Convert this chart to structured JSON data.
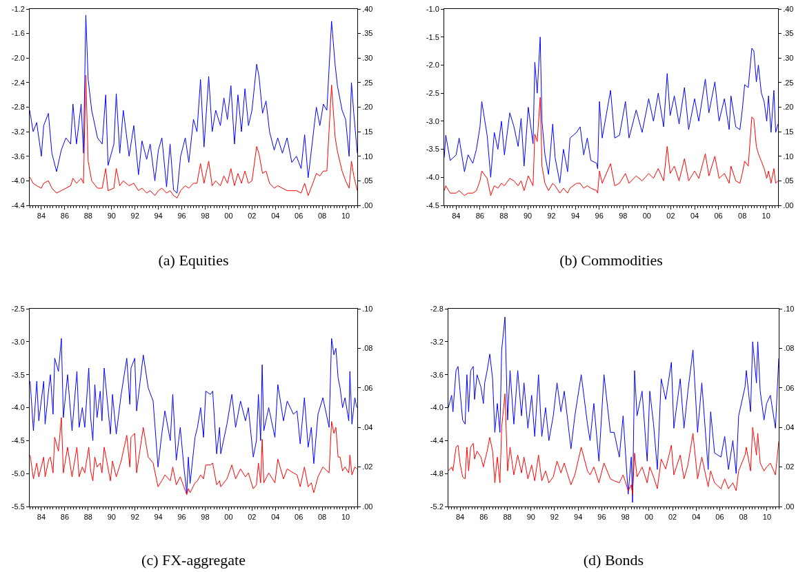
{
  "chart_data": [
    {
      "type": "line",
      "title": "(a) Equities",
      "xlim": [
        1983,
        2011
      ],
      "xticks": [
        {
          "value": 1984,
          "label": "84"
        },
        {
          "value": 1986,
          "label": "86"
        },
        {
          "value": 1988,
          "label": "88"
        },
        {
          "value": 1990,
          "label": "90"
        },
        {
          "value": 1992,
          "label": "92"
        },
        {
          "value": 1994,
          "label": "94"
        },
        {
          "value": 1996,
          "label": "96"
        },
        {
          "value": 1998,
          "label": "98"
        },
        {
          "value": 2000,
          "label": "00"
        },
        {
          "value": 2002,
          "label": "02"
        },
        {
          "value": 2004,
          "label": "04"
        },
        {
          "value": 2006,
          "label": "06"
        },
        {
          "value": 2008,
          "label": "08"
        },
        {
          "value": 2010,
          "label": "10"
        }
      ],
      "ylim": [
        -4.4,
        -1.2
      ],
      "yticks": [
        {
          "value": -4.4,
          "label": "-4.4"
        },
        {
          "value": -4.0,
          "label": "-4.0"
        },
        -3.6,
        -3.2,
        -2.8,
        -2.4,
        {
          "value": -2.0,
          "label": "-2.0"
        },
        -1.6,
        -1.2
      ],
      "y2lim": [
        0,
        0.4
      ],
      "y2ticks": [
        {
          "value": 0,
          "label": ".00"
        },
        {
          "value": 0.05,
          "label": ".05"
        },
        {
          "value": 0.1,
          "label": ".10"
        },
        {
          "value": 0.15,
          "label": ".15"
        },
        {
          "value": 0.2,
          "label": ".20"
        },
        {
          "value": 0.25,
          "label": ".25"
        },
        {
          "value": 0.3,
          "label": ".30"
        },
        {
          "value": 0.35,
          "label": ".35"
        },
        {
          "value": 0.4,
          "label": ".40"
        }
      ],
      "x": [
        1983.0,
        1983.3,
        1983.6,
        1984.0,
        1984.2,
        1984.6,
        1984.9,
        1985.3,
        1985.7,
        1986.1,
        1986.5,
        1986.7,
        1987.0,
        1987.4,
        1987.6,
        1987.8,
        1988.0,
        1988.3,
        1988.8,
        1989.2,
        1989.5,
        1989.7,
        1990.2,
        1990.4,
        1990.7,
        1991.0,
        1991.5,
        1991.9,
        1992.3,
        1992.6,
        1993.0,
        1993.3,
        1993.7,
        1994.0,
        1994.3,
        1994.7,
        1995.0,
        1995.3,
        1995.6,
        1995.9,
        1996.3,
        1996.6,
        1997.0,
        1997.3,
        1997.6,
        1997.9,
        1998.3,
        1998.6,
        1998.9,
        1999.3,
        1999.6,
        1999.9,
        2000.2,
        2000.5,
        2000.8,
        2001.1,
        2001.4,
        2001.7,
        2002.0,
        2002.4,
        2002.6,
        2002.9,
        2003.2,
        2003.5,
        2003.9,
        2004.2,
        2004.6,
        2005.0,
        2005.4,
        2005.8,
        2006.2,
        2006.5,
        2006.8,
        2007.2,
        2007.5,
        2007.8,
        2008.1,
        2008.4,
        2008.8,
        2009.1,
        2009.3,
        2009.7,
        2010.0,
        2010.3,
        2010.5,
        2010.7,
        2011.0
      ],
      "series": [
        {
          "color": "#0000ff",
          "values": [
            -2.85,
            -3.2,
            -3.05,
            -3.6,
            -3.1,
            -2.9,
            -3.55,
            -3.85,
            -3.5,
            -3.3,
            -3.4,
            -2.75,
            -3.4,
            -2.75,
            -3.55,
            -1.3,
            -2.35,
            -2.85,
            -3.3,
            -3.4,
            -2.6,
            -3.75,
            -3.4,
            -2.58,
            -3.55,
            -2.85,
            -3.6,
            -3.1,
            -3.9,
            -3.35,
            -3.65,
            -3.4,
            -4.0,
            -3.5,
            -3.3,
            -4.1,
            -3.4,
            -4.15,
            -4.2,
            -3.6,
            -3.3,
            -3.7,
            -3.0,
            -3.2,
            -2.35,
            -3.45,
            -2.3,
            -3.2,
            -2.85,
            -3.1,
            -2.65,
            -3.0,
            -2.45,
            -3.4,
            -2.6,
            -3.2,
            -2.5,
            -3.1,
            -2.85,
            -2.1,
            -2.3,
            -2.9,
            -2.7,
            -3.2,
            -3.5,
            -3.3,
            -3.55,
            -3.3,
            -3.7,
            -3.6,
            -3.8,
            -3.25,
            -3.95,
            -3.3,
            -2.8,
            -3.1,
            -2.75,
            -2.85,
            -1.4,
            -2.1,
            -2.45,
            -2.85,
            -3.0,
            -3.6,
            -2.4,
            -2.9,
            -3.55
          ]
        },
        {
          "color": "#ff0000",
          "axis": "y2",
          "values": [
            0.058,
            0.045,
            0.04,
            0.035,
            0.045,
            0.05,
            0.035,
            0.025,
            0.03,
            0.035,
            0.04,
            0.055,
            0.045,
            0.055,
            0.045,
            0.265,
            0.09,
            0.05,
            0.035,
            0.035,
            0.075,
            0.03,
            0.035,
            0.075,
            0.04,
            0.05,
            0.04,
            0.045,
            0.03,
            0.035,
            0.025,
            0.03,
            0.02,
            0.03,
            0.035,
            0.025,
            0.03,
            0.02,
            0.015,
            0.03,
            0.04,
            0.035,
            0.045,
            0.045,
            0.085,
            0.045,
            0.09,
            0.04,
            0.05,
            0.04,
            0.06,
            0.045,
            0.075,
            0.04,
            0.065,
            0.045,
            0.07,
            0.045,
            0.05,
            0.12,
            0.105,
            0.065,
            0.07,
            0.045,
            0.035,
            0.04,
            0.035,
            0.03,
            0.03,
            0.03,
            0.025,
            0.045,
            0.02,
            0.045,
            0.065,
            0.06,
            0.07,
            0.07,
            0.245,
            0.14,
            0.11,
            0.07,
            0.05,
            0.035,
            0.09,
            0.06,
            0.03
          ]
        }
      ]
    },
    {
      "type": "line",
      "title": "(b) Commodities",
      "xlim": [
        1983,
        2011
      ],
      "xticks": [
        {
          "value": 1984,
          "label": "84"
        },
        {
          "value": 1986,
          "label": "86"
        },
        {
          "value": 1988,
          "label": "88"
        },
        {
          "value": 1990,
          "label": "90"
        },
        {
          "value": 1992,
          "label": "92"
        },
        {
          "value": 1994,
          "label": "94"
        },
        {
          "value": 1996,
          "label": "96"
        },
        {
          "value": 1998,
          "label": "98"
        },
        {
          "value": 2000,
          "label": "00"
        },
        {
          "value": 2002,
          "label": "02"
        },
        {
          "value": 2004,
          "label": "04"
        },
        {
          "value": 2006,
          "label": "06"
        },
        {
          "value": 2008,
          "label": "08"
        },
        {
          "value": 2010,
          "label": "10"
        }
      ],
      "ylim": [
        -4.5,
        -1.0
      ],
      "yticks": [
        -4.5,
        {
          "value": -4.0,
          "label": "-4.0"
        },
        -3.5,
        {
          "value": -3.0,
          "label": "-3.0"
        },
        -2.5,
        {
          "value": -2.0,
          "label": "-2.0"
        },
        -1.5,
        {
          "value": -1.0,
          "label": "-1.0"
        }
      ],
      "y2lim": [
        0,
        0.4
      ],
      "y2ticks": [
        {
          "value": 0,
          "label": ".00"
        },
        {
          "value": 0.05,
          "label": ".05"
        },
        {
          "value": 0.1,
          "label": ".10"
        },
        {
          "value": 0.15,
          "label": ".15"
        },
        {
          "value": 0.2,
          "label": ".20"
        },
        {
          "value": 0.25,
          "label": ".25"
        },
        {
          "value": 0.3,
          "label": ".30"
        },
        {
          "value": 0.35,
          "label": ".35"
        },
        {
          "value": 0.4,
          "label": ".40"
        }
      ],
      "x": [
        1983.0,
        1983.13,
        1983.5,
        1984.0,
        1984.25,
        1984.7,
        1985.0,
        1985.4,
        1985.7,
        1986.0,
        1986.15,
        1986.6,
        1986.9,
        1987.2,
        1987.5,
        1987.8,
        1988.05,
        1988.5,
        1988.85,
        1989.2,
        1989.45,
        1989.7,
        1990.05,
        1990.45,
        1990.6,
        1990.8,
        1991.05,
        1991.2,
        1991.45,
        1991.75,
        1992.1,
        1992.3,
        1992.7,
        1993.0,
        1993.35,
        1993.55,
        1994.1,
        1994.4,
        1994.7,
        1995.0,
        1995.3,
        1995.78,
        1995.87,
        1996.02,
        1996.25,
        1996.95,
        1997.3,
        1997.7,
        1998.2,
        1998.5,
        1999.1,
        1999.6,
        2000.15,
        2000.55,
        2000.95,
        2001.4,
        2001.7,
        2001.95,
        2002.3,
        2002.7,
        2003.15,
        2003.5,
        2004.0,
        2004.35,
        2004.9,
        2005.2,
        2005.7,
        2006.05,
        2006.5,
        2006.9,
        2007.05,
        2007.45,
        2007.8,
        2008.0,
        2008.2,
        2008.5,
        2008.8,
        2008.97,
        2009.18,
        2009.35,
        2009.6,
        2009.83,
        2010.05,
        2010.2,
        2010.41,
        2010.65,
        2010.8,
        2011.0
      ],
      "series": [
        {
          "color": "#0000ff",
          "values": [
            -3.65,
            -3.25,
            -3.7,
            -3.6,
            -3.3,
            -3.9,
            -3.6,
            -3.75,
            -3.5,
            -3.1,
            -2.65,
            -3.25,
            -4.0,
            -3.2,
            -3.5,
            -3.0,
            -3.6,
            -2.85,
            -3.1,
            -3.45,
            -2.95,
            -3.8,
            -2.75,
            -3.4,
            -1.95,
            -2.5,
            -1.5,
            -3.0,
            -3.6,
            -3.95,
            -3.05,
            -3.65,
            -4.1,
            -3.5,
            -3.9,
            -3.3,
            -3.2,
            -3.1,
            -3.6,
            -3.3,
            -3.7,
            -3.75,
            -3.85,
            -2.65,
            -3.3,
            -2.45,
            -3.3,
            -3.25,
            -2.65,
            -3.3,
            -2.8,
            -3.2,
            -2.6,
            -3.0,
            -2.5,
            -3.1,
            -2.15,
            -2.9,
            -2.55,
            -3.05,
            -2.4,
            -3.15,
            -2.6,
            -3.0,
            -2.25,
            -2.85,
            -2.3,
            -3.0,
            -2.6,
            -3.15,
            -2.55,
            -3.1,
            -3.15,
            -2.8,
            -2.35,
            -2.4,
            -1.7,
            -1.75,
            -2.3,
            -2.0,
            -2.5,
            -2.65,
            -3.0,
            -2.55,
            -3.2,
            -2.45,
            -3.2,
            -3.05
          ]
        },
        {
          "color": "#ff0000",
          "axis": "y2",
          "values": [
            0.03,
            0.04,
            0.025,
            0.025,
            0.03,
            0.02,
            0.025,
            0.025,
            0.03,
            0.05,
            0.07,
            0.055,
            0.02,
            0.04,
            0.035,
            0.045,
            0.04,
            0.055,
            0.05,
            0.04,
            0.05,
            0.03,
            0.06,
            0.04,
            0.145,
            0.13,
            0.22,
            0.08,
            0.045,
            0.03,
            0.045,
            0.04,
            0.025,
            0.035,
            0.025,
            0.035,
            0.045,
            0.045,
            0.035,
            0.04,
            0.035,
            0.03,
            0.025,
            0.07,
            0.045,
            0.085,
            0.04,
            0.045,
            0.065,
            0.045,
            0.06,
            0.05,
            0.065,
            0.055,
            0.075,
            0.05,
            0.12,
            0.065,
            0.08,
            0.05,
            0.095,
            0.05,
            0.07,
            0.055,
            0.105,
            0.06,
            0.1,
            0.055,
            0.065,
            0.045,
            0.08,
            0.05,
            0.045,
            0.065,
            0.09,
            0.08,
            0.18,
            0.175,
            0.12,
            0.105,
            0.09,
            0.075,
            0.055,
            0.07,
            0.045,
            0.075,
            0.045,
            0.05
          ]
        }
      ]
    },
    {
      "type": "line",
      "title": "(c) FX-aggregate",
      "xlim": [
        1983,
        2011
      ],
      "xticks": [
        {
          "value": 1984,
          "label": "84"
        },
        {
          "value": 1986,
          "label": "86"
        },
        {
          "value": 1988,
          "label": "88"
        },
        {
          "value": 1990,
          "label": "90"
        },
        {
          "value": 1992,
          "label": "92"
        },
        {
          "value": 1994,
          "label": "94"
        },
        {
          "value": 1996,
          "label": "96"
        },
        {
          "value": 1998,
          "label": "98"
        },
        {
          "value": 2000,
          "label": "00"
        },
        {
          "value": 2002,
          "label": "02"
        },
        {
          "value": 2004,
          "label": "04"
        },
        {
          "value": 2006,
          "label": "06"
        },
        {
          "value": 2008,
          "label": "08"
        },
        {
          "value": 2010,
          "label": "10"
        }
      ],
      "ylim": [
        -5.5,
        -2.5
      ],
      "yticks": [
        -5.5,
        {
          "value": -5.0,
          "label": "-5.0"
        },
        -4.5,
        {
          "value": -4.0,
          "label": "-4.0"
        },
        -3.5,
        {
          "value": -3.0,
          "label": "-3.0"
        },
        -2.5
      ],
      "y2lim": [
        0,
        0.1
      ],
      "y2ticks": [
        {
          "value": 0,
          "label": ".00"
        },
        {
          "value": 0.02,
          "label": ".02"
        },
        {
          "value": 0.04,
          "label": ".04"
        },
        {
          "value": 0.06,
          "label": ".06"
        },
        {
          "value": 0.08,
          "label": ".08"
        },
        {
          "value": 0.1,
          "label": ".10"
        }
      ],
      "x": [
        1983.04,
        1983.32,
        1983.61,
        1983.78,
        1984.2,
        1984.32,
        1984.64,
        1984.77,
        1985.0,
        1985.14,
        1985.46,
        1985.71,
        1985.88,
        1986.24,
        1986.62,
        1987.04,
        1987.23,
        1987.5,
        1987.71,
        1988.05,
        1988.21,
        1988.4,
        1988.57,
        1988.76,
        1989.03,
        1989.18,
        1989.37,
        1989.9,
        1990.08,
        1990.4,
        1990.82,
        1991.3,
        1991.56,
        1991.66,
        1991.98,
        1992.14,
        1992.71,
        1993.13,
        1993.55,
        1993.97,
        1994.29,
        1994.56,
        1995.02,
        1995.23,
        1995.53,
        1995.87,
        1996.18,
        1996.43,
        1996.56,
        1996.71,
        1997.13,
        1997.34,
        1997.61,
        1997.86,
        1998.05,
        1998.45,
        1998.64,
        1998.98,
        1999.23,
        1999.33,
        1999.86,
        2000.28,
        2000.6,
        2001.02,
        2001.44,
        2001.69,
        2002.11,
        2002.38,
        2002.55,
        2002.74,
        2002.87,
        2003.01,
        2003.43,
        2003.96,
        2004.21,
        2004.69,
        2005.01,
        2005.54,
        2005.85,
        2006.12,
        2006.48,
        2006.8,
        2007.07,
        2007.28,
        2007.64,
        2008.06,
        2008.59,
        2008.8,
        2009.0,
        2009.17,
        2009.36,
        2009.53,
        2009.74,
        2009.95,
        2010.27,
        2010.37,
        2010.54,
        2010.79,
        2010.96
      ],
      "series": [
        {
          "color": "#0000ff",
          "values": [
            -3.6,
            -4.35,
            -3.6,
            -4.2,
            -3.6,
            -4.25,
            -3.7,
            -3.5,
            -4.1,
            -3.25,
            -3.45,
            -2.95,
            -4.15,
            -3.5,
            -4.35,
            -3.45,
            -4.3,
            -4.0,
            -4.3,
            -3.4,
            -4.15,
            -4.5,
            -3.65,
            -4.15,
            -3.75,
            -4.2,
            -3.4,
            -4.4,
            -3.8,
            -4.4,
            -3.8,
            -3.25,
            -3.95,
            -3.4,
            -3.25,
            -4.05,
            -3.2,
            -3.7,
            -3.9,
            -4.9,
            -4.4,
            -4.05,
            -4.5,
            -3.8,
            -4.8,
            -4.3,
            -4.9,
            -5.3,
            -4.75,
            -5.15,
            -4.45,
            -4.3,
            -4.0,
            -4.45,
            -3.75,
            -3.8,
            -3.75,
            -4.7,
            -4.3,
            -4.7,
            -4.25,
            -3.8,
            -4.3,
            -3.9,
            -4.2,
            -4.0,
            -4.75,
            -4.5,
            -3.8,
            -4.5,
            -3.35,
            -4.35,
            -4.0,
            -4.45,
            -3.65,
            -4.2,
            -3.9,
            -4.1,
            -4.05,
            -4.55,
            -3.85,
            -4.6,
            -4.3,
            -4.85,
            -4.1,
            -3.85,
            -4.3,
            -2.95,
            -3.2,
            -3.1,
            -3.55,
            -3.7,
            -4.0,
            -3.85,
            -4.2,
            -3.45,
            -4.25,
            -3.85,
            -4.0
          ]
        },
        {
          "color": "#ff0000",
          "axis": "y2",
          "values": [
            0.026,
            0.014,
            0.022,
            0.015,
            0.025,
            0.015,
            0.024,
            0.025,
            0.017,
            0.035,
            0.028,
            0.045,
            0.017,
            0.03,
            0.015,
            0.03,
            0.015,
            0.02,
            0.017,
            0.03,
            0.018,
            0.013,
            0.025,
            0.02,
            0.022,
            0.017,
            0.03,
            0.013,
            0.023,
            0.015,
            0.023,
            0.036,
            0.02,
            0.035,
            0.037,
            0.017,
            0.04,
            0.025,
            0.022,
            0.01,
            0.013,
            0.016,
            0.013,
            0.02,
            0.011,
            0.015,
            0.01,
            0.006,
            0.009,
            0.007,
            0.012,
            0.013,
            0.016,
            0.014,
            0.021,
            0.021,
            0.022,
            0.011,
            0.013,
            0.01,
            0.014,
            0.021,
            0.014,
            0.019,
            0.015,
            0.017,
            0.009,
            0.011,
            0.022,
            0.012,
            0.034,
            0.012,
            0.017,
            0.012,
            0.024,
            0.014,
            0.019,
            0.017,
            0.016,
            0.01,
            0.02,
            0.01,
            0.012,
            0.007,
            0.015,
            0.02,
            0.017,
            0.043,
            0.037,
            0.04,
            0.025,
            0.025,
            0.018,
            0.02,
            0.017,
            0.026,
            0.016,
            0.02,
            0.019
          ]
        }
      ]
    },
    {
      "type": "line",
      "title": "(d) Bonds",
      "xlim": [
        1983,
        2011
      ],
      "xticks": [
        {
          "value": 1984,
          "label": "84"
        },
        {
          "value": 1986,
          "label": "86"
        },
        {
          "value": 1988,
          "label": "88"
        },
        {
          "value": 1990,
          "label": "90"
        },
        {
          "value": 1992,
          "label": "92"
        },
        {
          "value": 1994,
          "label": "94"
        },
        {
          "value": 1996,
          "label": "96"
        },
        {
          "value": 1998,
          "label": "98"
        },
        {
          "value": 2000,
          "label": "00"
        },
        {
          "value": 2002,
          "label": "02"
        },
        {
          "value": 2004,
          "label": "04"
        },
        {
          "value": 2006,
          "label": "06"
        },
        {
          "value": 2008,
          "label": "08"
        },
        {
          "value": 2010,
          "label": "10"
        }
      ],
      "ylim": [
        -5.2,
        -2.8
      ],
      "yticks": [
        -5.2,
        -4.8,
        -4.4,
        {
          "value": -4.0,
          "label": "-4.0"
        },
        -3.6,
        -3.2,
        -2.8
      ],
      "y2lim": [
        0,
        0.1
      ],
      "y2ticks": [
        {
          "value": 0,
          "label": ".00"
        },
        {
          "value": 0.02,
          "label": ".02"
        },
        {
          "value": 0.04,
          "label": ".04"
        },
        {
          "value": 0.06,
          "label": ".06"
        },
        {
          "value": 0.08,
          "label": ".08"
        },
        {
          "value": 0.1,
          "label": ".10"
        }
      ],
      "x": [
        1983.0,
        1983.28,
        1983.39,
        1983.65,
        1983.82,
        1983.99,
        1984.21,
        1984.42,
        1984.57,
        1984.72,
        1984.89,
        1985.11,
        1985.22,
        1985.43,
        1985.76,
        1985.97,
        1986.08,
        1986.29,
        1986.51,
        1986.75,
        1986.94,
        1987.15,
        1987.37,
        1987.52,
        1987.8,
        1988.02,
        1988.23,
        1988.55,
        1988.88,
        1989.2,
        1989.41,
        1989.74,
        1990.06,
        1990.32,
        1990.64,
        1990.92,
        1991.24,
        1991.52,
        1991.89,
        1992.21,
        1992.54,
        1992.82,
        1993.07,
        1993.39,
        1993.72,
        1994.26,
        1994.79,
        1995.01,
        1995.33,
        1995.76,
        1996.19,
        1996.73,
        1997.05,
        1997.49,
        1997.81,
        1998.24,
        1998.5,
        1998.61,
        1998.78,
        1998.99,
        1999.42,
        1999.85,
        2000.07,
        2000.39,
        2000.71,
        2001.04,
        2001.42,
        2001.9,
        2002.11,
        2002.65,
        2002.97,
        2003.3,
        2003.73,
        2004.12,
        2004.48,
        2005.02,
        2005.23,
        2005.56,
        2006.1,
        2006.42,
        2006.74,
        2007.11,
        2007.39,
        2007.6,
        2008.14,
        2008.25,
        2008.61,
        2008.79,
        2009.11,
        2009.22,
        2009.43,
        2009.75,
        2009.97,
        2010.29,
        2010.72,
        2011.0
      ],
      "series": [
        {
          "color": "#0000ff",
          "values": [
            -4.0,
            -3.85,
            -4.05,
            -3.55,
            -3.5,
            -3.8,
            -4.15,
            -4.2,
            -3.6,
            -4.05,
            -3.55,
            -3.5,
            -3.9,
            -3.6,
            -3.75,
            -3.95,
            -3.7,
            -3.55,
            -3.35,
            -3.65,
            -4.3,
            -3.95,
            -4.3,
            -3.3,
            -2.9,
            -4.15,
            -3.55,
            -4.2,
            -3.55,
            -4.1,
            -3.7,
            -4.25,
            -3.85,
            -4.35,
            -3.6,
            -4.35,
            -4.0,
            -4.4,
            -4.1,
            -3.7,
            -4.05,
            -3.8,
            -4.1,
            -4.5,
            -4.1,
            -3.6,
            -4.2,
            -4.4,
            -3.95,
            -4.65,
            -3.6,
            -4.3,
            -4.3,
            -4.6,
            -4.1,
            -5.05,
            -4.6,
            -5.15,
            -3.55,
            -4.1,
            -3.8,
            -4.65,
            -3.8,
            -4.2,
            -4.75,
            -3.65,
            -3.9,
            -3.45,
            -4.25,
            -3.65,
            -4.25,
            -3.8,
            -3.3,
            -4.3,
            -3.7,
            -4.75,
            -4.05,
            -4.55,
            -4.6,
            -4.35,
            -4.75,
            -4.4,
            -4.8,
            -4.1,
            -3.75,
            -3.55,
            -4.05,
            -3.2,
            -3.7,
            -3.2,
            -3.8,
            -4.15,
            -3.95,
            -3.85,
            -4.25,
            -3.4
          ]
        },
        {
          "color": "#ff0000",
          "axis": "y2",
          "values": [
            0.018,
            0.02,
            0.018,
            0.03,
            0.031,
            0.022,
            0.015,
            0.014,
            0.03,
            0.018,
            0.03,
            0.032,
            0.024,
            0.028,
            0.025,
            0.02,
            0.023,
            0.028,
            0.035,
            0.028,
            0.012,
            0.025,
            0.012,
            0.04,
            0.057,
            0.018,
            0.03,
            0.016,
            0.026,
            0.017,
            0.025,
            0.014,
            0.021,
            0.013,
            0.026,
            0.013,
            0.018,
            0.012,
            0.015,
            0.023,
            0.017,
            0.022,
            0.017,
            0.011,
            0.016,
            0.03,
            0.018,
            0.016,
            0.02,
            0.012,
            0.022,
            0.014,
            0.013,
            0.012,
            0.016,
            0.008,
            0.011,
            0.006,
            0.027,
            0.015,
            0.02,
            0.012,
            0.02,
            0.015,
            0.009,
            0.024,
            0.019,
            0.031,
            0.016,
            0.026,
            0.014,
            0.021,
            0.037,
            0.014,
            0.025,
            0.01,
            0.018,
            0.012,
            0.009,
            0.014,
            0.009,
            0.012,
            0.008,
            0.018,
            0.026,
            0.03,
            0.018,
            0.04,
            0.026,
            0.037,
            0.022,
            0.018,
            0.02,
            0.022,
            0.016,
            0.033
          ]
        }
      ]
    }
  ]
}
